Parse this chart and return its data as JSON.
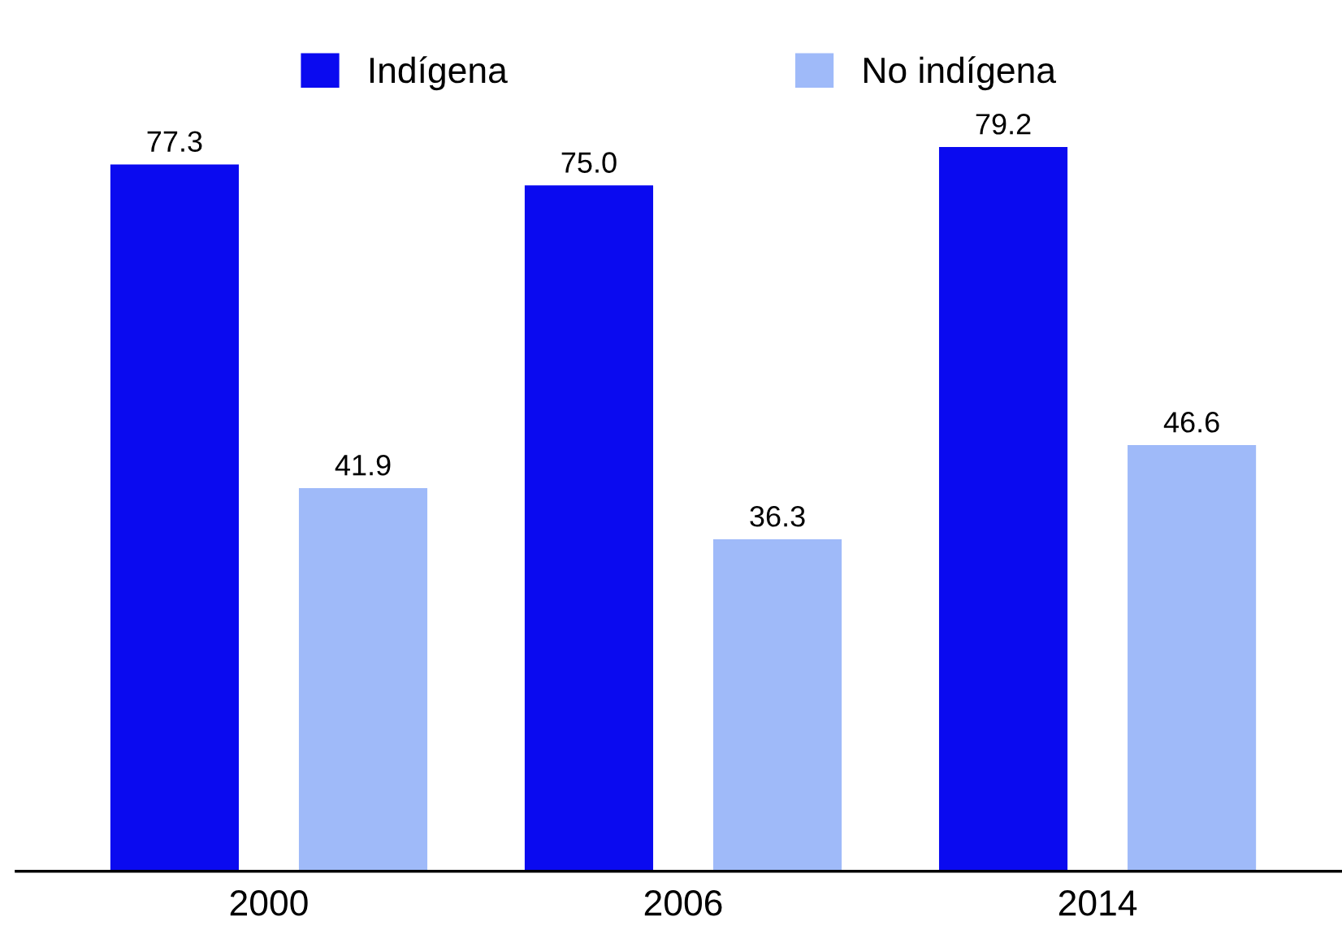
{
  "chart_data": {
    "type": "bar",
    "categories": [
      "2000",
      "2006",
      "2014"
    ],
    "series": [
      {
        "name": "Indígena",
        "color": "#0a0af0",
        "values": [
          77.3,
          75.0,
          79.2
        ],
        "value_labels": [
          "77.3",
          "75.0",
          "79.2"
        ]
      },
      {
        "name": "No indígena",
        "color": "#9fbaf9",
        "values": [
          41.9,
          36.3,
          46.6
        ],
        "value_labels": [
          "41.9",
          "36.3",
          "46.6"
        ]
      }
    ],
    "legend": "top",
    "grid": false
  }
}
